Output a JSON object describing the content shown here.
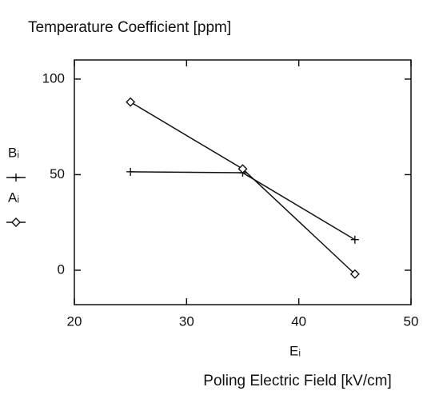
{
  "chart_data": {
    "type": "line",
    "title": "Temperature Coefficient [ppm]",
    "x_axis_symbol": "Eᵢ",
    "x_axis_label": "Poling Electric Field [kV/cm]",
    "x": [
      25,
      35,
      45
    ],
    "series": [
      {
        "name": "Bᵢ",
        "color": "#111111",
        "marker": "plus",
        "values": [
          51.5,
          51,
          16
        ]
      },
      {
        "name": "Aᵢ",
        "color": "#111111",
        "marker": "diamond",
        "values": [
          88,
          53,
          -2
        ]
      }
    ],
    "xlim": [
      20,
      50
    ],
    "xticks": [
      20,
      30,
      40,
      50
    ],
    "ylim": [
      -18,
      110
    ],
    "yticks": [
      0,
      50,
      100
    ],
    "grid": false
  }
}
